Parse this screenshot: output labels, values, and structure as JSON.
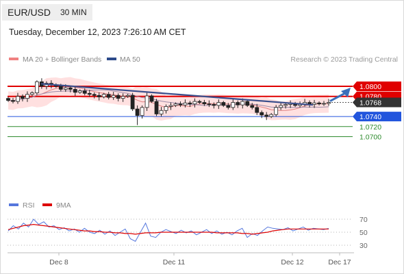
{
  "header": {
    "pair": "EUR/USD",
    "timeframe": "30 MIN",
    "datetime": "Tuesday, December 12, 2023 7:26:10 AM CET"
  },
  "legend": {
    "ma20_label": "MA 20 + Bollinger Bands",
    "ma50_label": "MA 50",
    "ma20_color": "#f08080",
    "ma50_color": "#2c4a8a",
    "rsi_label": "RSI",
    "rsi9_label": "9MA",
    "rsi_color": "#5577dd",
    "rsi9_color": "#dd0000"
  },
  "copyright": "Research © 2023 Trading Central",
  "chart_data": [
    {
      "type": "candlestick",
      "ylim": [
        1.0694,
        1.0826
      ],
      "x": [
        "Dec 8",
        "Dec 11",
        "Dec 12",
        "Dec 17"
      ],
      "levels": [
        {
          "value": 1.08,
          "label": "1.0800",
          "kind": "resistance",
          "color": "#e00000"
        },
        {
          "value": 1.078,
          "label": "1.0780",
          "kind": "resistance",
          "color": "#e00000"
        },
        {
          "value": 1.0768,
          "label": "1.0768",
          "kind": "current",
          "color": "#333333"
        },
        {
          "value": 1.074,
          "label": "1.0740",
          "kind": "support",
          "color": "#2255dd"
        },
        {
          "value": 1.072,
          "label": "1.0720",
          "kind": "support",
          "color": "#2e8b2e"
        },
        {
          "value": 1.07,
          "label": "1.0700",
          "kind": "support",
          "color": "#2e8b2e"
        }
      ],
      "price_series": [
        1.0772,
        1.077,
        1.078,
        1.0776,
        1.0784,
        1.0787,
        1.0809,
        1.08,
        1.0806,
        1.0803,
        1.08,
        1.0794,
        1.0797,
        1.0794,
        1.0788,
        1.0791,
        1.0786,
        1.0784,
        1.0782,
        1.0779,
        1.0784,
        1.0778,
        1.0782,
        1.0776,
        1.078,
        1.0782,
        1.0755,
        1.0742,
        1.0758,
        1.0781,
        1.077,
        1.0745,
        1.0752,
        1.076,
        1.0762,
        1.0765,
        1.0763,
        1.0767,
        1.0765,
        1.077,
        1.0768,
        1.0765,
        1.0764,
        1.0762,
        1.0768,
        1.0762,
        1.0758,
        1.0768,
        1.0763,
        1.077,
        1.0762,
        1.0758,
        1.0748,
        1.0743,
        1.074,
        1.0744,
        1.0758,
        1.0762,
        1.0764,
        1.0766,
        1.0762,
        1.0765,
        1.0768,
        1.0764,
        1.0767,
        1.0765,
        1.0766,
        1.0768
      ],
      "extremes": {
        "high": 1.0812,
        "low": 1.0723
      },
      "trendline": [
        [
          1.0805,
          "Dec 8"
        ],
        [
          1.0763,
          "Dec 12"
        ]
      ],
      "projection": {
        "from": 1.0768,
        "to": 1.08
      }
    },
    {
      "type": "line",
      "ylim": [
        20,
        80
      ],
      "ticks": [
        "70",
        "50",
        "30"
      ],
      "series": [
        {
          "name": "RSI",
          "values": [
            52,
            60,
            55,
            64,
            58,
            70,
            62,
            66,
            58,
            60,
            54,
            57,
            52,
            55,
            50,
            56,
            50,
            48,
            53,
            47,
            52,
            45,
            50,
            55,
            40,
            36,
            50,
            64,
            44,
            42,
            50,
            54,
            51,
            48,
            53,
            49,
            52,
            46,
            50,
            54,
            48,
            52,
            47,
            50,
            46,
            52,
            56,
            42,
            48,
            45,
            52,
            58,
            56,
            55,
            54,
            57,
            52,
            55,
            58,
            53,
            56,
            55,
            54,
            56
          ]
        },
        {
          "name": "9MA",
          "values": [
            54,
            56,
            58,
            60,
            61,
            62,
            61,
            60,
            59,
            58,
            57,
            56,
            55,
            54,
            53,
            52,
            52,
            51,
            51,
            50,
            50,
            49,
            49,
            48,
            48,
            47,
            48,
            49,
            49,
            49,
            50,
            50,
            50,
            50,
            50,
            50,
            50,
            50,
            50,
            50,
            50,
            49,
            49,
            49,
            49,
            49,
            48,
            48,
            47,
            48,
            49,
            50,
            52,
            53,
            54,
            55,
            55,
            55,
            55,
            55,
            55,
            55,
            55,
            55
          ]
        }
      ]
    }
  ]
}
